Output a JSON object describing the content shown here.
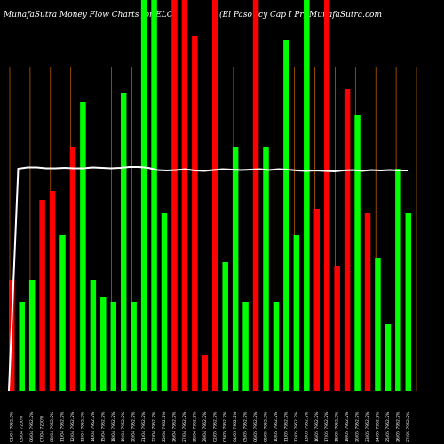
{
  "header": {
    "left_title": "MunafaSutra  Money Flow  Charts for ELC",
    "right_title": "(El Paso      rcy Cap I Pr) MunafaSutra.com"
  },
  "colors": {
    "background": "#000000",
    "up": "#00ff00",
    "down": "#ff0000",
    "grid": "#cc6600",
    "line": "#ffffff",
    "text": "#ffffff"
  },
  "chart_data": {
    "type": "bar",
    "grid_vertical": true,
    "bars": [
      {
        "label": "01/04 7962.2%",
        "dir": "down",
        "value": 25
      },
      {
        "label": "05/04 7200%",
        "dir": "up",
        "value": 20
      },
      {
        "label": "06/04 7962.2%",
        "dir": "up",
        "value": 25
      },
      {
        "label": "07/04 7200%",
        "dir": "down",
        "value": 43
      },
      {
        "label": "08/04 7962.2%",
        "dir": "down",
        "value": 45
      },
      {
        "label": "11/04 7962.2%",
        "dir": "up",
        "value": 35
      },
      {
        "label": "12/04 7962.2%",
        "dir": "down",
        "value": 55
      },
      {
        "label": "13/04 7962.2%",
        "dir": "up",
        "value": 65
      },
      {
        "label": "14/04 7962.2%",
        "dir": "up",
        "value": 25
      },
      {
        "label": "15/04 7962.2%",
        "dir": "up",
        "value": 21
      },
      {
        "label": "18/04 7962.2%",
        "dir": "up",
        "value": 20
      },
      {
        "label": "19/04 7962.2%",
        "dir": "up",
        "value": 67
      },
      {
        "label": "20/04 7962.2%",
        "dir": "up",
        "value": 20
      },
      {
        "label": "21/04 7962.2%",
        "dir": "up",
        "value": 88
      },
      {
        "label": "22/04 7962.2%",
        "dir": "up",
        "value": 88
      },
      {
        "label": "25/04 7962.2%",
        "dir": "up",
        "value": 40
      },
      {
        "label": "26/04 7962.2%",
        "dir": "down",
        "value": 88
      },
      {
        "label": "27/04 7962.2%",
        "dir": "down",
        "value": 88
      },
      {
        "label": "28/04 7962.2%",
        "dir": "down",
        "value": 80
      },
      {
        "label": "29/04 7962.2%",
        "dir": "down",
        "value": 8
      },
      {
        "label": "02/05 7962.2%",
        "dir": "down",
        "value": 88
      },
      {
        "label": "03/05 7962.2%",
        "dir": "up",
        "value": 29
      },
      {
        "label": "04/05 7962.2%",
        "dir": "up",
        "value": 55
      },
      {
        "label": "05/05 7962.2%",
        "dir": "up",
        "value": 20
      },
      {
        "label": "06/05 7962.2%",
        "dir": "down",
        "value": 88
      },
      {
        "label": "09/05 7962.2%",
        "dir": "up",
        "value": 55
      },
      {
        "label": "10/05 7962.2%",
        "dir": "up",
        "value": 20
      },
      {
        "label": "11/05 7962.2%",
        "dir": "up",
        "value": 79
      },
      {
        "label": "12/05 7962.2%",
        "dir": "up",
        "value": 35
      },
      {
        "label": "13/05 7962.2%",
        "dir": "up",
        "value": 88
      },
      {
        "label": "16/05 7962.2%",
        "dir": "down",
        "value": 41
      },
      {
        "label": "17/05 7962.2%",
        "dir": "down",
        "value": 88
      },
      {
        "label": "18/05 7962.2%",
        "dir": "down",
        "value": 28
      },
      {
        "label": "19/05 7962.2%",
        "dir": "down",
        "value": 68
      },
      {
        "label": "20/05 7962.2%",
        "dir": "up",
        "value": 62
      },
      {
        "label": "23/05 7962.2%",
        "dir": "down",
        "value": 40
      },
      {
        "label": "24/05 7962.2%",
        "dir": "up",
        "value": 30
      },
      {
        "label": "25/05 7962.2%",
        "dir": "up",
        "value": 15
      },
      {
        "label": "26/05 7962.2%",
        "dir": "up",
        "value": 50
      },
      {
        "label": "27/05 7962.2%",
        "dir": "up",
        "value": 40
      }
    ],
    "line": [
      0,
      50,
      50.3,
      50.3,
      50.1,
      50.1,
      50.2,
      50.1,
      50.1,
      50.3,
      50.2,
      50.1,
      50.2,
      50.4,
      50.4,
      50.2,
      49.7,
      49.6,
      49.7,
      49.9,
      49.6,
      49.5,
      49.7,
      49.9,
      49.8,
      49.7,
      49.8,
      49.9,
      49.7,
      49.9,
      49.8,
      49.6,
      49.5,
      49.6,
      49.5,
      49.4,
      49.6,
      49.7,
      49.5,
      49.7,
      49.6,
      49.7,
      49.6,
      49.6
    ],
    "ylim": [
      0,
      88
    ]
  }
}
